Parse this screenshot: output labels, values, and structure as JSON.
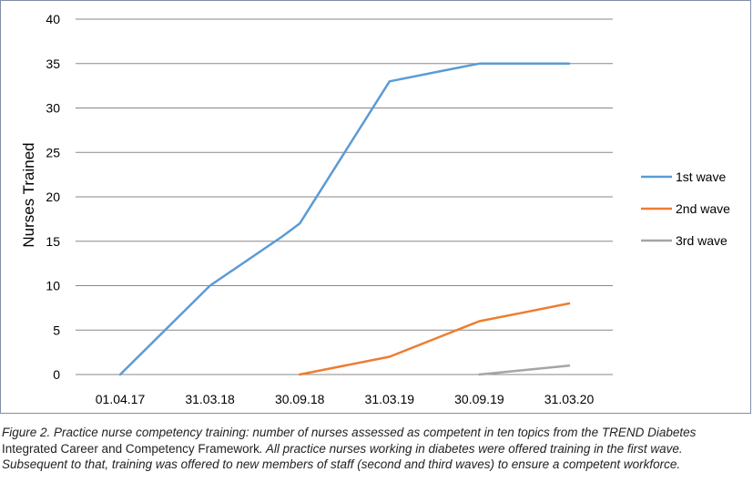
{
  "chart_data": {
    "type": "line",
    "title": "",
    "xlabel": "",
    "ylabel": "Nurses Trained",
    "ylim": [
      0,
      40
    ],
    "yticks": [
      0,
      5,
      10,
      15,
      20,
      25,
      30,
      35,
      40
    ],
    "categories": [
      "01.04.17",
      "31.03.18",
      "30.09.18",
      "31.03.19",
      "30.09.19",
      "31.03.20"
    ],
    "grid": true,
    "legend_position": "right",
    "series": [
      {
        "name": "1st wave",
        "color": "#5b9bd5",
        "points": [
          {
            "x": 0,
            "y": 0
          },
          {
            "x": 1,
            "y": 10
          },
          {
            "x": 1.8,
            "y": 15.5
          },
          {
            "x": 2,
            "y": 17
          },
          {
            "x": 3,
            "y": 33
          },
          {
            "x": 3.6,
            "y": 34.2
          },
          {
            "x": 4,
            "y": 35
          },
          {
            "x": 5,
            "y": 35
          }
        ]
      },
      {
        "name": "2nd wave",
        "color": "#ed7d31",
        "points": [
          {
            "x": 2,
            "y": 0
          },
          {
            "x": 3,
            "y": 2
          },
          {
            "x": 3.5,
            "y": 4
          },
          {
            "x": 4,
            "y": 6
          },
          {
            "x": 4.5,
            "y": 7
          },
          {
            "x": 5,
            "y": 8
          }
        ]
      },
      {
        "name": "3rd wave",
        "color": "#a5a5a5",
        "points": [
          {
            "x": 4,
            "y": 0
          },
          {
            "x": 5,
            "y": 1
          }
        ]
      }
    ]
  },
  "caption": {
    "part1": "Figure 2. Practice nurse competency training: number of nurses assessed as competent in ten topics from the TREND Diabetes",
    "part2": " Integrated Career and Competency Framework",
    "part3": ". All practice nurses working in diabetes were offered training in the first wave. Subsequent to that, training was offered to new members of staff (second and third waves) to ensure a competent workforce."
  }
}
